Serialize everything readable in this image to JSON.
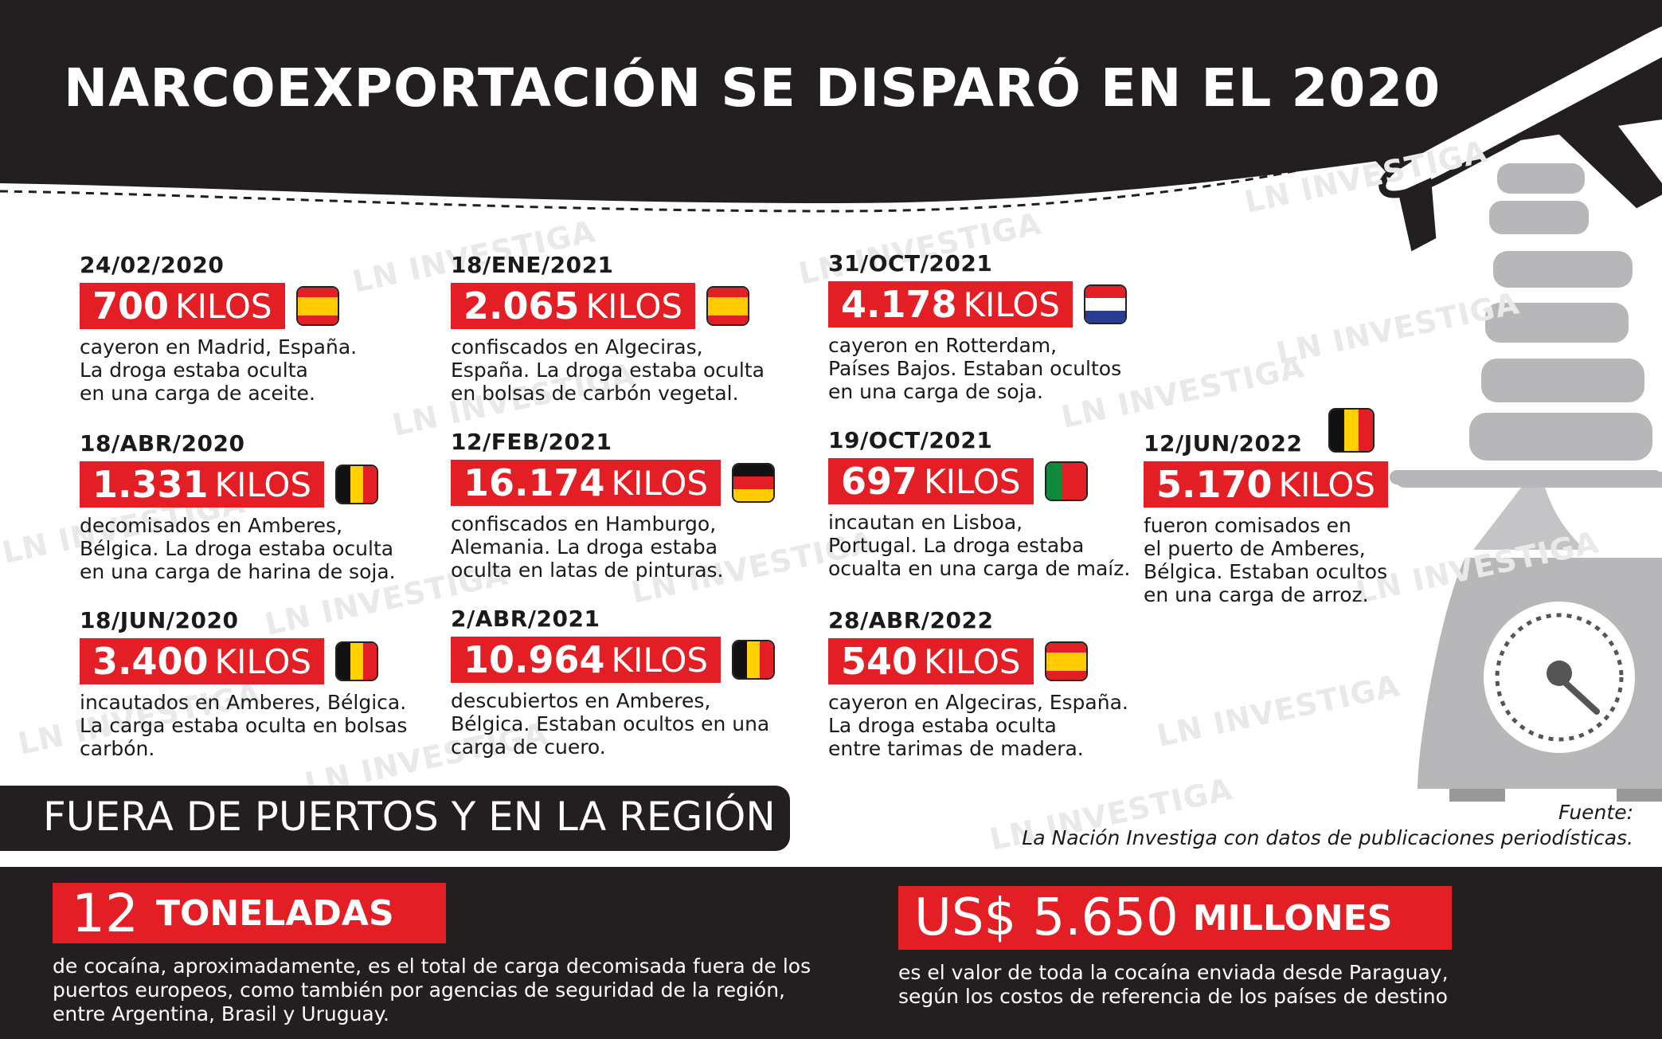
{
  "header": {
    "title": "NARCOEXPORTACIÓN SE DISPARÓ EN EL 2020"
  },
  "watermark": {
    "text": "LN INVESTIGA"
  },
  "unit": "KILOS",
  "flag_colors": {
    "spain": [
      "#e31e24",
      "#ffcc00",
      "#e31e24"
    ],
    "belgium": [
      "#111111",
      "#ffd200",
      "#e31e24"
    ],
    "germany": [
      "#111111",
      "#e31e24",
      "#ffcc00"
    ],
    "netherlands": [
      "#e31e24",
      "#ffffff",
      "#2a3c8f"
    ],
    "portugal": [
      "#0f8a3c",
      "#e31e24"
    ]
  },
  "entries": [
    {
      "date": "24/02/2020",
      "amount": "700",
      "flag": "spain-flag-icon",
      "lines": [
        "cayeron en Madrid, España.",
        "La droga estaba oculta",
        "en una carga de aceite."
      ]
    },
    {
      "date": "18/ABR/2020",
      "amount": "1.331",
      "flag": "belgium-flag-icon",
      "lines": [
        "decomisados en Amberes,",
        "Bélgica. La droga estaba oculta",
        "en una carga de harina de soja."
      ]
    },
    {
      "date": "18/JUN/2020",
      "amount": "3.400",
      "flag": "belgium-flag-icon",
      "lines": [
        "incautados en Amberes, Bélgica.",
        "La carga estaba oculta en bolsas",
        "carbón."
      ]
    },
    {
      "date": "18/ENE/2021",
      "amount": "2.065",
      "flag": "spain-flag-icon",
      "lines": [
        "confiscados en Algeciras,",
        "España. La droga estaba oculta",
        "en bolsas de carbón vegetal."
      ]
    },
    {
      "date": "12/FEB/2021",
      "amount": "16.174",
      "flag": "germany-flag-icon",
      "lines": [
        "confiscados en Hamburgo,",
        "Alemania. La droga estaba",
        "oculta en latas de pinturas."
      ]
    },
    {
      "date": "2/ABR/2021",
      "amount": "10.964",
      "flag": "belgium-flag-icon",
      "lines": [
        "descubiertos en Amberes,",
        "Bélgica. Estaban ocultos en una",
        "carga de cuero."
      ]
    },
    {
      "date": "31/OCT/2021",
      "amount": "4.178",
      "flag": "netherlands-flag-icon",
      "lines": [
        "cayeron en Rotterdam,",
        "Países Bajos. Estaban ocultos",
        "en una carga de soja."
      ]
    },
    {
      "date": "19/OCT/2021",
      "amount": "697",
      "flag": "portugal-flag-icon",
      "lines": [
        "incautan en Lisboa,",
        "Portugal. La droga estaba",
        "ocualta en una carga de maíz."
      ]
    },
    {
      "date": "28/ABR/2022",
      "amount": "540",
      "flag": "spain-flag-icon",
      "lines": [
        "cayeron en Algeciras, España.",
        "La droga estaba oculta",
        "entre tarimas de madera."
      ]
    },
    {
      "date": "12/JUN/2022",
      "amount": "5.170",
      "flag": "belgium-flag-icon",
      "lines": [
        "fueron comisados en",
        "el puerto de Amberes,",
        "Bélgica. Estaban ocultos",
        "en una carga de arroz."
      ]
    }
  ],
  "section2": {
    "title": "FUERA DE PUERTOS Y EN LA REGIÓN"
  },
  "source": {
    "label": "Fuente:",
    "text": "La Nación Investiga con datos de publicaciones periodísticas."
  },
  "stats": [
    {
      "big": "12",
      "label": "TONELADAS",
      "lines": [
        "de cocaína, aproximadamente, es el total de carga decomisada fuera de los",
        "puertos europeos, como también por agencias de seguridad de la región,",
        "entre Argentina, Brasil y Uruguay."
      ]
    },
    {
      "big": "US$ 5.650",
      "label": "MILLONES",
      "lines": [
        "es el valor de toda la cocaína enviada desde Paraguay,",
        "según los costos de referencia de los países de destino"
      ]
    }
  ]
}
